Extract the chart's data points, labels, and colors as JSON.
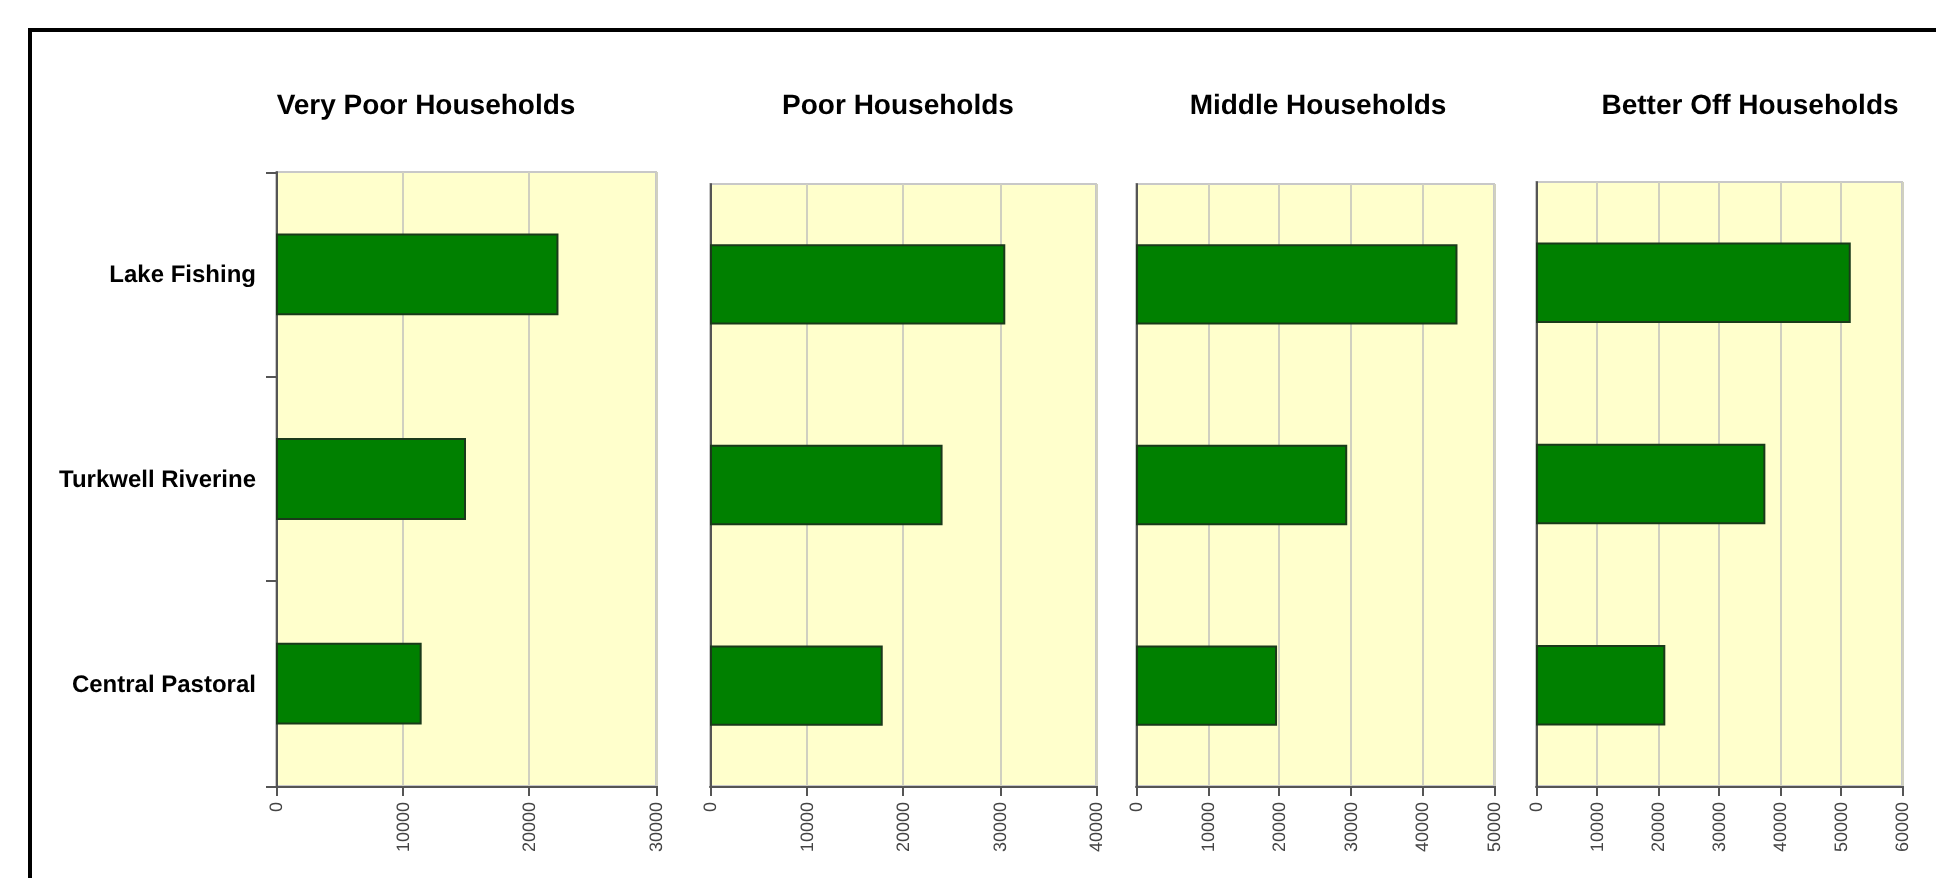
{
  "chart_data": [
    {
      "type": "bar",
      "orientation": "horizontal",
      "title": "Very Poor Households",
      "categories": [
        "Lake Fishing",
        "Turkwell Riverine",
        "Central Pastoral"
      ],
      "values": [
        22300,
        15000,
        11500
      ],
      "color": "#008000",
      "xlim": [
        0,
        30000
      ],
      "xticks": [
        0,
        10000,
        20000,
        30000
      ],
      "grid": "x"
    },
    {
      "type": "bar",
      "orientation": "horizontal",
      "title": "Poor Households",
      "categories": [
        null,
        null,
        null
      ],
      "values": [
        30600,
        24100,
        17900
      ],
      "color": "#008000",
      "xlim": [
        0,
        40000
      ],
      "xticks": [
        0,
        10000,
        20000,
        30000,
        40000
      ],
      "grid": "x"
    },
    {
      "type": "bar",
      "orientation": "horizontal",
      "title": "Middle Households",
      "categories": [
        null,
        null,
        null
      ],
      "values": [
        44900,
        29500,
        19700
      ],
      "color": "#008000",
      "xlim": [
        0,
        50000
      ],
      "xticks": [
        0,
        10000,
        20000,
        30000,
        40000,
        50000
      ],
      "grid": "x"
    },
    {
      "type": "bar",
      "orientation": "horizontal",
      "title": "Better Off Households",
      "categories": [
        null,
        null,
        null
      ],
      "values": [
        51600,
        37600,
        21200
      ],
      "color": "#008000",
      "xlim": [
        0,
        60000
      ],
      "xticks": [
        0,
        10000,
        20000,
        30000,
        40000,
        50000,
        60000
      ],
      "grid": "x"
    }
  ]
}
